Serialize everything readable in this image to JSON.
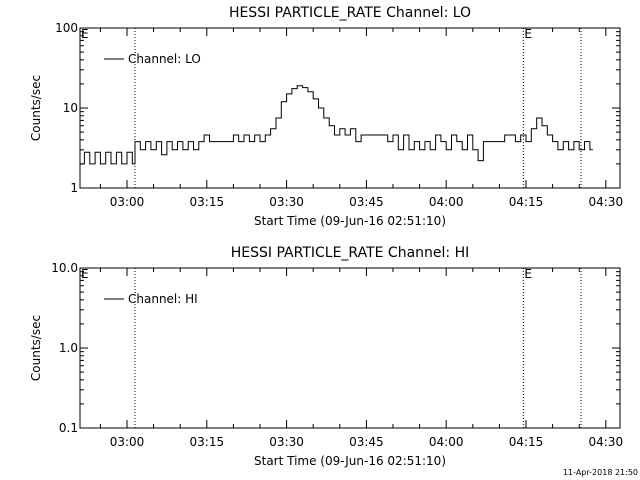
{
  "chart_data": [
    {
      "type": "line",
      "title": "HESSI PARTICLE_RATE Channel: LO",
      "xlabel": "Start Time (09-Jun-16 02:51:10)",
      "ylabel": "Counts/sec",
      "yscale": "log",
      "ylim": [
        1,
        100
      ],
      "xlim": [
        "02:51:10",
        "04:32:40"
      ],
      "x_ticks": [
        "03:00",
        "03:15",
        "03:30",
        "03:45",
        "04:00",
        "04:15",
        "04:30"
      ],
      "y_ticks": [
        "1",
        "10",
        "100"
      ],
      "legend": {
        "label": "Channel: LO",
        "position": "top-left"
      },
      "markers": [
        {
          "label": "E",
          "time": "02:51:10"
        },
        {
          "time": "03:01:30"
        },
        {
          "label": "E",
          "time": "04:14:30"
        },
        {
          "time": "04:25:20"
        }
      ],
      "series": [
        {
          "name": "Channel: LO",
          "points": [
            [
              "02:51:10",
              2
            ],
            [
              "02:52:00",
              2.8
            ],
            [
              "02:53:00",
              2
            ],
            [
              "02:54:00",
              2.8
            ],
            [
              "02:55:00",
              2
            ],
            [
              "02:56:00",
              2.8
            ],
            [
              "02:57:00",
              2
            ],
            [
              "02:58:00",
              2.8
            ],
            [
              "02:59:00",
              2
            ],
            [
              "03:00:00",
              2.8
            ],
            [
              "03:01:00",
              2
            ],
            [
              "03:01:30",
              3.8
            ],
            [
              "03:02:30",
              3
            ],
            [
              "03:03:30",
              3.8
            ],
            [
              "03:04:30",
              3
            ],
            [
              "03:05:30",
              3.8
            ],
            [
              "03:06:30",
              2.6
            ],
            [
              "03:07:30",
              3.8
            ],
            [
              "03:08:30",
              3
            ],
            [
              "03:09:30",
              3.8
            ],
            [
              "03:10:30",
              3
            ],
            [
              "03:11:30",
              3.8
            ],
            [
              "03:12:30",
              3
            ],
            [
              "03:13:30",
              3.8
            ],
            [
              "03:14:30",
              4.6
            ],
            [
              "03:15:30",
              3.8
            ],
            [
              "03:17:00",
              3.8
            ],
            [
              "03:18:00",
              3.8
            ],
            [
              "03:19:00",
              3.8
            ],
            [
              "03:20:00",
              4.6
            ],
            [
              "03:21:00",
              3.8
            ],
            [
              "03:22:00",
              4.6
            ],
            [
              "03:23:00",
              3.8
            ],
            [
              "03:24:00",
              4.6
            ],
            [
              "03:25:00",
              3.8
            ],
            [
              "03:26:00",
              4.6
            ],
            [
              "03:27:00",
              5.5
            ],
            [
              "03:28:00",
              7.5
            ],
            [
              "03:29:00",
              12
            ],
            [
              "03:30:00",
              15
            ],
            [
              "03:31:00",
              17.5
            ],
            [
              "03:32:00",
              19
            ],
            [
              "03:33:00",
              18
            ],
            [
              "03:34:00",
              16
            ],
            [
              "03:35:00",
              13
            ],
            [
              "03:36:00",
              10
            ],
            [
              "03:37:00",
              7.5
            ],
            [
              "03:38:00",
              6
            ],
            [
              "03:39:00",
              4.6
            ],
            [
              "03:40:00",
              5.5
            ],
            [
              "03:41:00",
              4.6
            ],
            [
              "03:42:00",
              5.5
            ],
            [
              "03:43:00",
              3.8
            ],
            [
              "03:44:00",
              4.6
            ],
            [
              "03:45:00",
              4.6
            ],
            [
              "03:46:00",
              4.6
            ],
            [
              "03:47:00",
              4.6
            ],
            [
              "03:48:00",
              4.6
            ],
            [
              "03:49:00",
              3.8
            ],
            [
              "03:50:00",
              4.6
            ],
            [
              "03:51:00",
              3
            ],
            [
              "03:52:00",
              4.6
            ],
            [
              "03:53:00",
              3
            ],
            [
              "03:54:00",
              3.8
            ],
            [
              "03:55:00",
              3
            ],
            [
              "03:56:00",
              3.8
            ],
            [
              "03:57:00",
              3
            ],
            [
              "03:58:00",
              4.6
            ],
            [
              "03:59:00",
              3.8
            ],
            [
              "04:00:00",
              3
            ],
            [
              "04:01:00",
              4.6
            ],
            [
              "04:02:00",
              3.8
            ],
            [
              "04:03:00",
              3
            ],
            [
              "04:04:00",
              4.6
            ],
            [
              "04:05:00",
              3
            ],
            [
              "04:06:00",
              2.2
            ],
            [
              "04:07:00",
              3.8
            ],
            [
              "04:08:00",
              3.8
            ],
            [
              "04:09:00",
              3.8
            ],
            [
              "04:10:00",
              3.8
            ],
            [
              "04:11:00",
              4.6
            ],
            [
              "04:12:00",
              4.6
            ],
            [
              "04:13:00",
              3.8
            ],
            [
              "04:14:00",
              4.6
            ],
            [
              "04:15:00",
              3.8
            ],
            [
              "04:16:00",
              5.5
            ],
            [
              "04:17:00",
              7.5
            ],
            [
              "04:18:00",
              6
            ],
            [
              "04:19:00",
              4.6
            ],
            [
              "04:20:00",
              3.8
            ],
            [
              "04:21:00",
              3
            ],
            [
              "04:22:00",
              3.8
            ],
            [
              "04:23:00",
              3
            ],
            [
              "04:24:00",
              3.8
            ],
            [
              "04:25:00",
              3
            ],
            [
              "04:26:00",
              3.8
            ],
            [
              "04:27:00",
              3
            ]
          ]
        }
      ]
    },
    {
      "type": "line",
      "title": "HESSI PARTICLE_RATE Channel: HI",
      "xlabel": "Start Time (09-Jun-16 02:51:10)",
      "ylabel": "Counts/sec",
      "yscale": "log",
      "ylim": [
        0.1,
        10
      ],
      "xlim": [
        "02:51:10",
        "04:32:40"
      ],
      "x_ticks": [
        "03:00",
        "03:15",
        "03:30",
        "03:45",
        "04:00",
        "04:15",
        "04:30"
      ],
      "y_ticks": [
        "0.1",
        "1.0",
        "10.0"
      ],
      "legend": {
        "label": "Channel: HI",
        "position": "top-left"
      },
      "markers": [
        {
          "label": "E",
          "time": "02:51:10"
        },
        {
          "time": "03:01:30"
        },
        {
          "label": "E",
          "time": "04:14:30"
        },
        {
          "time": "04:25:20"
        }
      ],
      "series": [
        {
          "name": "Channel: HI",
          "points": []
        }
      ]
    }
  ],
  "footer": {
    "timestamp": "11-Apr-2018 21:50"
  }
}
